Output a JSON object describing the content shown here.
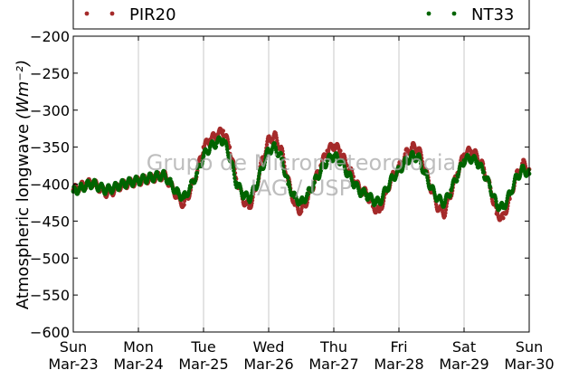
{
  "chart_data": {
    "type": "scatter",
    "ylabel": "Atmospheric longwave",
    "ylabel_unit": "(Wm⁻²)",
    "ylim": [
      -600,
      -200
    ],
    "yticks": [
      -200,
      -250,
      -300,
      -350,
      -400,
      -450,
      -500,
      -550,
      -600
    ],
    "ytick_labels": [
      "−200",
      "−250",
      "−300",
      "−350",
      "−400",
      "−450",
      "−500",
      "−550",
      "−600"
    ],
    "xlim": [
      "2014-03-23",
      "2014-03-30"
    ],
    "xticks": [
      {
        "day": "Sun",
        "date": "Mar-23"
      },
      {
        "day": "Mon",
        "date": "Mar-24"
      },
      {
        "day": "Tue",
        "date": "Mar-25"
      },
      {
        "day": "Wed",
        "date": "Mar-26"
      },
      {
        "day": "Thu",
        "date": "Mar-27"
      },
      {
        "day": "Fri",
        "date": "Mar-28"
      },
      {
        "day": "Sat",
        "date": "Mar-29"
      },
      {
        "day": "Sun",
        "date": "Mar-30"
      }
    ],
    "grid": "x",
    "legend": "top",
    "watermark": [
      "Grupo de Micrometeorologia",
      "IAG / USP"
    ],
    "series": [
      {
        "name": "PIR20",
        "color": "#a52a2a",
        "days": [
          0,
          0.1,
          0.2,
          0.3,
          0.4,
          0.5,
          0.6,
          0.7,
          0.8,
          0.9,
          1.0,
          1.1,
          1.2,
          1.3,
          1.4,
          1.5,
          1.6,
          1.7,
          1.8,
          1.9,
          2.0,
          2.1,
          2.2,
          2.3,
          2.4,
          2.5,
          2.6,
          2.7,
          2.8,
          2.9,
          3.0,
          3.1,
          3.2,
          3.3,
          3.4,
          3.5,
          3.6,
          3.7,
          3.8,
          3.9,
          4.0,
          4.1,
          4.2,
          4.3,
          4.4,
          4.5,
          4.6,
          4.7,
          4.8,
          4.9,
          5.0,
          5.1,
          5.2,
          5.3,
          5.4,
          5.5,
          5.6,
          5.7,
          5.8,
          5.9,
          6.0,
          6.1,
          6.2,
          6.3,
          6.4,
          6.5,
          6.6,
          6.7,
          6.8,
          6.9,
          7.0
        ],
        "values": [
          -408,
          -404,
          -400,
          -398,
          -405,
          -412,
          -410,
          -403,
          -400,
          -398,
          -396,
          -394,
          -392,
          -390,
          -388,
          -402,
          -418,
          -428,
          -408,
          -384,
          -350,
          -340,
          -334,
          -328,
          -350,
          -393,
          -420,
          -432,
          -408,
          -368,
          -340,
          -335,
          -355,
          -395,
          -428,
          -437,
          -420,
          -398,
          -375,
          -355,
          -348,
          -355,
          -375,
          -390,
          -408,
          -412,
          -430,
          -437,
          -412,
          -390,
          -378,
          -360,
          -350,
          -352,
          -380,
          -408,
          -432,
          -440,
          -412,
          -385,
          -360,
          -355,
          -362,
          -378,
          -405,
          -440,
          -446,
          -420,
          -390,
          -372,
          -380
        ]
      },
      {
        "name": "NT33",
        "color": "#006400",
        "days": [
          0,
          0.1,
          0.2,
          0.3,
          0.4,
          0.5,
          0.6,
          0.7,
          0.8,
          0.9,
          1.0,
          1.1,
          1.2,
          1.3,
          1.4,
          1.5,
          1.6,
          1.7,
          1.8,
          1.9,
          2.0,
          2.1,
          2.2,
          2.3,
          2.4,
          2.5,
          2.6,
          2.7,
          2.8,
          2.9,
          3.0,
          3.1,
          3.2,
          3.3,
          3.4,
          3.5,
          3.6,
          3.7,
          3.8,
          3.9,
          4.0,
          4.1,
          4.2,
          4.3,
          4.4,
          4.5,
          4.6,
          4.7,
          4.8,
          4.9,
          5.0,
          5.1,
          5.2,
          5.3,
          5.4,
          5.5,
          5.6,
          5.7,
          5.8,
          5.9,
          6.0,
          6.1,
          6.2,
          6.3,
          6.4,
          6.5,
          6.6,
          6.7,
          6.8,
          6.9,
          7.0
        ],
        "values": [
          -410,
          -406,
          -402,
          -399,
          -404,
          -408,
          -406,
          -402,
          -399,
          -397,
          -395,
          -393,
          -391,
          -389,
          -388,
          -400,
          -412,
          -418,
          -404,
          -385,
          -362,
          -350,
          -344,
          -340,
          -362,
          -398,
          -413,
          -420,
          -404,
          -378,
          -354,
          -350,
          -366,
          -400,
          -418,
          -425,
          -414,
          -398,
          -382,
          -368,
          -362,
          -368,
          -384,
          -398,
          -410,
          -414,
          -422,
          -425,
          -408,
          -392,
          -382,
          -370,
          -362,
          -364,
          -386,
          -406,
          -420,
          -426,
          -408,
          -388,
          -368,
          -365,
          -370,
          -384,
          -404,
          -428,
          -432,
          -414,
          -392,
          -380,
          -386
        ]
      }
    ]
  }
}
